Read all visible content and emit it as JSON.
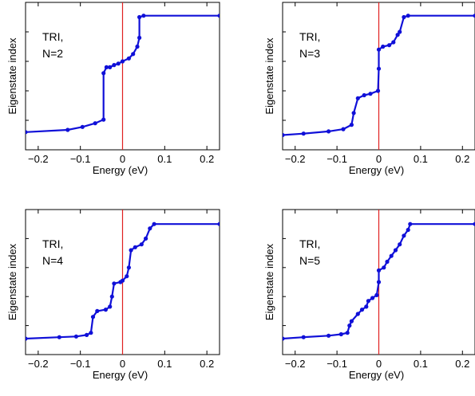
{
  "chart_data": [
    {
      "type": "scatter",
      "panel": "top-left",
      "xlabel": "Energy (eV)",
      "ylabel": "Eigenstate index",
      "xlim": [
        -0.23,
        0.23
      ],
      "xticks": [
        -0.2,
        -0.1,
        0,
        0.1,
        0.2
      ],
      "xtick_labels": [
        "−0.2",
        "−0.1",
        "0",
        "0.1",
        "0.2"
      ],
      "y_ticks_labeled": false,
      "vline_x": 0,
      "annotation": [
        "TRI,",
        "N=2"
      ],
      "series": [
        {
          "points": [
            [
              -0.23,
              0.12
            ],
            [
              -0.13,
              0.135
            ],
            [
              -0.095,
              0.155
            ],
            [
              -0.065,
              0.18
            ],
            [
              -0.045,
              0.205
            ],
            [
              -0.045,
              0.52
            ],
            [
              -0.038,
              0.56
            ],
            [
              -0.03,
              0.56
            ],
            [
              -0.02,
              0.575
            ],
            [
              -0.01,
              0.585
            ],
            [
              0.0,
              0.6
            ],
            [
              0.015,
              0.62
            ],
            [
              0.025,
              0.65
            ],
            [
              0.035,
              0.7
            ],
            [
              0.04,
              0.76
            ],
            [
              0.04,
              0.9
            ],
            [
              0.05,
              0.91
            ],
            [
              0.23,
              0.91
            ]
          ]
        }
      ]
    },
    {
      "type": "scatter",
      "panel": "top-right",
      "xlabel": "Energy (eV)",
      "ylabel": "Eigenstate index",
      "xlim": [
        -0.23,
        0.23
      ],
      "xticks": [
        -0.2,
        -0.1,
        0,
        0.1,
        0.2
      ],
      "xtick_labels": [
        "−0.2",
        "−0.1",
        "0",
        "0.1",
        "0.2"
      ],
      "y_ticks_labeled": false,
      "vline_x": 0,
      "annotation": [
        "TRI,",
        "N=3"
      ],
      "series": [
        {
          "points": [
            [
              -0.23,
              0.1
            ],
            [
              -0.18,
              0.11
            ],
            [
              -0.12,
              0.125
            ],
            [
              -0.085,
              0.14
            ],
            [
              -0.065,
              0.17
            ],
            [
              -0.06,
              0.25
            ],
            [
              -0.05,
              0.35
            ],
            [
              -0.035,
              0.37
            ],
            [
              -0.02,
              0.38
            ],
            [
              -0.002,
              0.4
            ],
            [
              0.0,
              0.55
            ],
            [
              0.0,
              0.68
            ],
            [
              0.01,
              0.7
            ],
            [
              0.025,
              0.71
            ],
            [
              0.035,
              0.73
            ],
            [
              0.045,
              0.78
            ],
            [
              0.05,
              0.8
            ],
            [
              0.06,
              0.9
            ],
            [
              0.07,
              0.91
            ],
            [
              0.23,
              0.91
            ]
          ]
        }
      ]
    },
    {
      "type": "scatter",
      "panel": "bottom-left",
      "xlabel": "Energy (eV)",
      "ylabel": "Eigenstate index",
      "xlim": [
        -0.23,
        0.23
      ],
      "xticks": [
        -0.2,
        -0.1,
        0,
        0.1,
        0.2
      ],
      "xtick_labels": [
        "−0.2",
        "−0.1",
        "0",
        "0.1",
        "0.2"
      ],
      "y_ticks_labeled": false,
      "vline_x": 0,
      "annotation": [
        "TRI,",
        "N=4"
      ],
      "series": [
        {
          "points": [
            [
              -0.23,
              0.11
            ],
            [
              -0.15,
              0.12
            ],
            [
              -0.11,
              0.125
            ],
            [
              -0.085,
              0.135
            ],
            [
              -0.075,
              0.15
            ],
            [
              -0.07,
              0.26
            ],
            [
              -0.06,
              0.3
            ],
            [
              -0.04,
              0.31
            ],
            [
              -0.03,
              0.33
            ],
            [
              -0.025,
              0.4
            ],
            [
              -0.02,
              0.49
            ],
            [
              -0.005,
              0.5
            ],
            [
              0.0,
              0.51
            ],
            [
              0.01,
              0.54
            ],
            [
              0.015,
              0.6
            ],
            [
              0.02,
              0.72
            ],
            [
              0.03,
              0.74
            ],
            [
              0.045,
              0.76
            ],
            [
              0.055,
              0.8
            ],
            [
              0.065,
              0.87
            ],
            [
              0.075,
              0.9
            ],
            [
              0.23,
              0.9
            ]
          ]
        }
      ]
    },
    {
      "type": "scatter",
      "panel": "bottom-right",
      "xlabel": "Energy (eV)",
      "ylabel": "Eigenstate index",
      "xlim": [
        -0.23,
        0.23
      ],
      "xticks": [
        -0.2,
        -0.1,
        0,
        0.1,
        0.2
      ],
      "xtick_labels": [
        "−0.2",
        "−0.1",
        "0",
        "0.1",
        "0.2"
      ],
      "y_ticks_labeled": false,
      "vline_x": 0,
      "annotation": [
        "TRI,",
        "N=5"
      ],
      "series": [
        {
          "points": [
            [
              -0.23,
              0.11
            ],
            [
              -0.18,
              0.12
            ],
            [
              -0.12,
              0.13
            ],
            [
              -0.09,
              0.14
            ],
            [
              -0.075,
              0.15
            ],
            [
              -0.07,
              0.2
            ],
            [
              -0.065,
              0.23
            ],
            [
              -0.05,
              0.28
            ],
            [
              -0.04,
              0.31
            ],
            [
              -0.03,
              0.33
            ],
            [
              -0.025,
              0.37
            ],
            [
              -0.015,
              0.39
            ],
            [
              -0.005,
              0.41
            ],
            [
              0.0,
              0.5
            ],
            [
              0.0,
              0.58
            ],
            [
              0.012,
              0.6
            ],
            [
              0.02,
              0.64
            ],
            [
              0.03,
              0.68
            ],
            [
              0.04,
              0.72
            ],
            [
              0.05,
              0.76
            ],
            [
              0.06,
              0.82
            ],
            [
              0.07,
              0.86
            ],
            [
              0.075,
              0.9
            ],
            [
              0.23,
              0.9
            ]
          ]
        }
      ]
    }
  ],
  "colors": {
    "series": "#1010d8",
    "vline": "#e02020",
    "axes": "#000000"
  }
}
